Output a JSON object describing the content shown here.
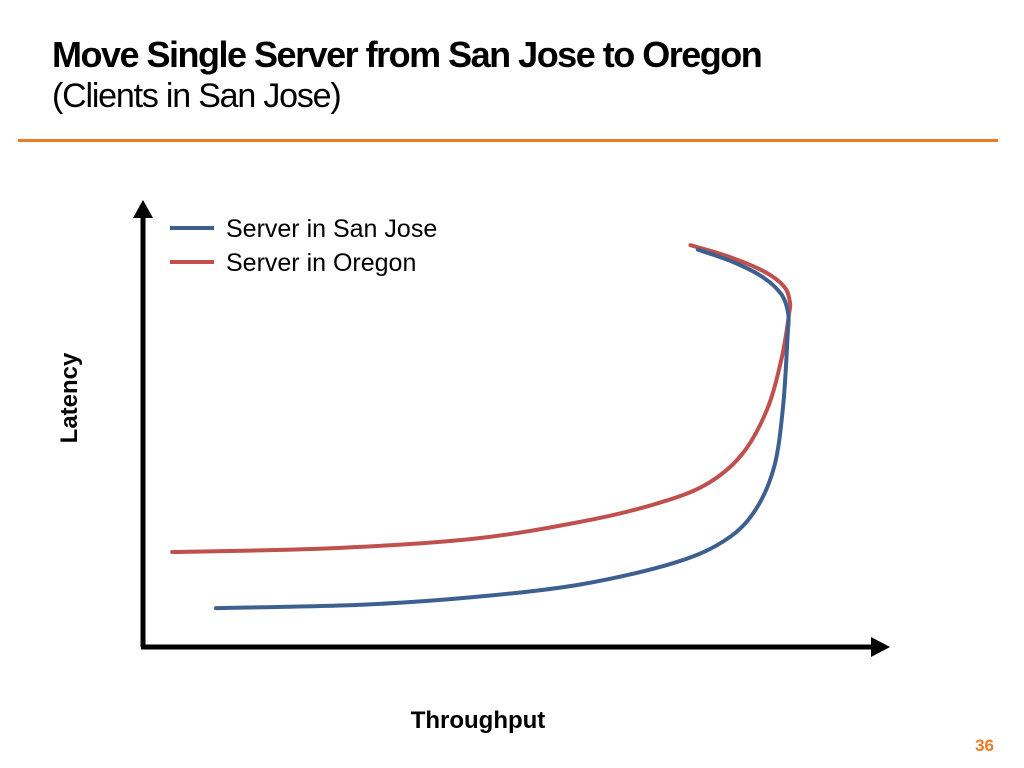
{
  "slide": {
    "title": "Move Single Server from San Jose to Oregon",
    "subtitle": "(Clients in San Jose)",
    "page_number": "36",
    "accent_color": "#ee7b22"
  },
  "chart_data": {
    "type": "line",
    "title": "Move Single Server from San Jose to Oregon",
    "subtitle": "(Clients in San Jose)",
    "xlabel": "Throughput",
    "ylabel": "Latency",
    "xlim": [
      0,
      100
    ],
    "ylim": [
      0,
      100
    ],
    "grid": false,
    "ticks": false,
    "legend_position": "top-left",
    "series": [
      {
        "name": "Server in San Jose",
        "color": "#3d6090",
        "x": [
          10,
          30,
          45,
          60,
          73,
          80,
          84,
          86.5,
          87.7,
          88.3,
          88.4,
          87.5,
          85,
          81,
          76
        ],
        "y": [
          9,
          9.8,
          11.5,
          14.5,
          19.6,
          25,
          32,
          42,
          56,
          72,
          77,
          81.5,
          85.5,
          89,
          92
        ]
      },
      {
        "name": "Server in Oregon",
        "color": "#c0504d",
        "x": [
          4,
          25,
          45,
          60,
          70,
          77,
          82,
          85.5,
          87.5,
          88.5,
          88.6,
          87.8,
          85,
          80,
          75
        ],
        "y": [
          22,
          22.8,
          25,
          29,
          33,
          37.5,
          44.5,
          55,
          67,
          77,
          80,
          83.5,
          87,
          90.5,
          93
        ]
      }
    ]
  }
}
